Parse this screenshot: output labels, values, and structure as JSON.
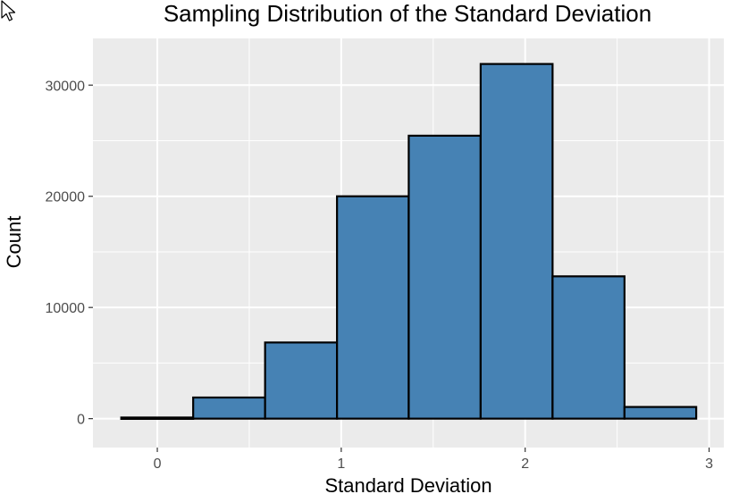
{
  "chart_data": {
    "type": "bar",
    "title": "Sampling Distribution of the Standard Deviation",
    "xlabel": "Standard Deviation",
    "ylabel": "Count",
    "xlim": [
      -0.35,
      3.08
    ],
    "ylim": [
      -2600,
      34200
    ],
    "x_ticks": [
      0,
      1,
      2,
      3
    ],
    "x_tick_labels": [
      "0",
      "1",
      "2",
      "3"
    ],
    "y_ticks": [
      0,
      10000,
      20000,
      30000
    ],
    "y_tick_labels": [
      "0",
      "10000",
      "20000",
      "30000"
    ],
    "bins": [
      {
        "x0": -0.196,
        "x1": 0.195,
        "count": 100
      },
      {
        "x0": 0.195,
        "x1": 0.586,
        "count": 1900
      },
      {
        "x0": 0.586,
        "x1": 0.977,
        "count": 6850
      },
      {
        "x0": 0.977,
        "x1": 1.367,
        "count": 20000
      },
      {
        "x0": 1.367,
        "x1": 1.758,
        "count": 25450
      },
      {
        "x0": 1.758,
        "x1": 2.149,
        "count": 31900
      },
      {
        "x0": 2.149,
        "x1": 2.54,
        "count": 12800
      },
      {
        "x0": 2.54,
        "x1": 2.93,
        "count": 1050
      }
    ],
    "fill_color": "#4682b4",
    "outline_color": "#000000",
    "panel_background": "#ebebeb",
    "grid_color": "#ffffff",
    "grid": true,
    "legend": "none"
  },
  "cursor": {
    "icon": "mouse-pointer-icon"
  }
}
